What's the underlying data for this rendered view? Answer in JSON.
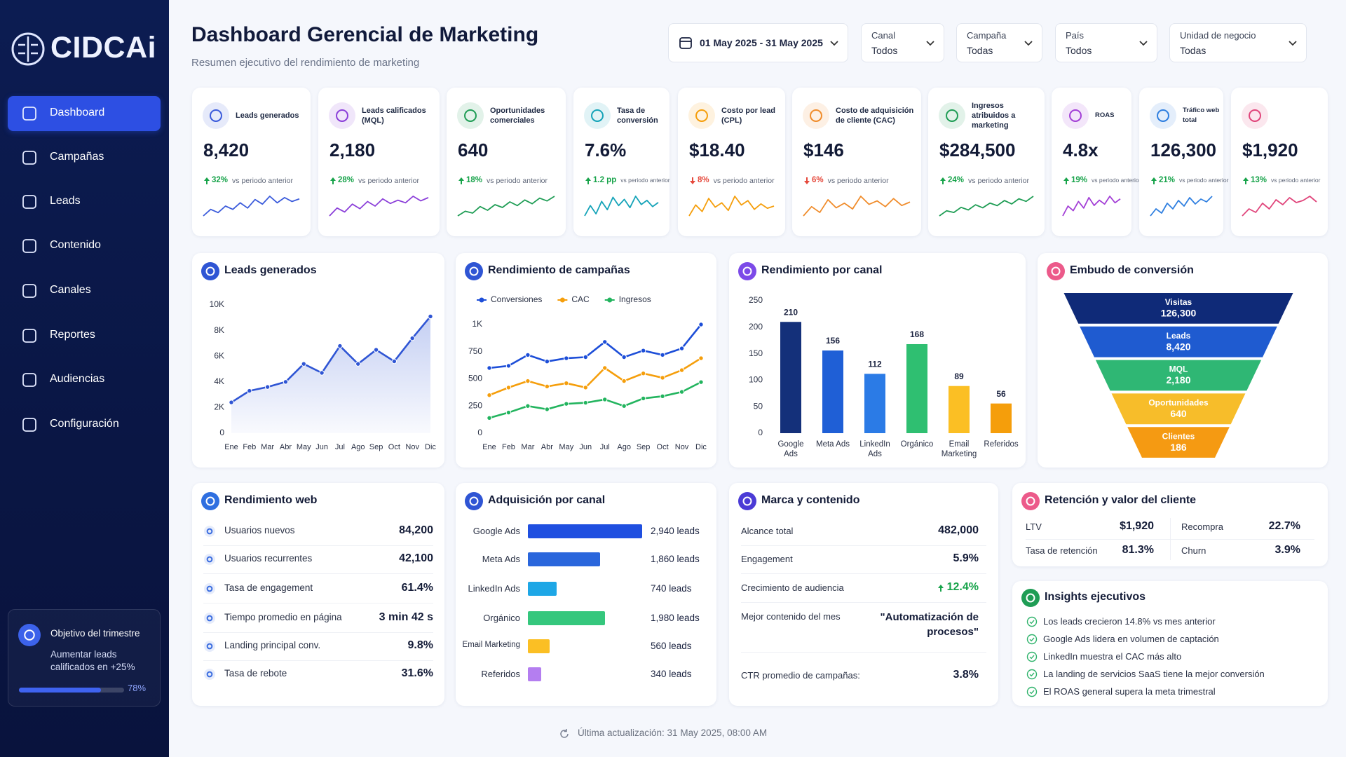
{
  "sidebar": {
    "brand": "CIDCAi",
    "menu": [
      "Dashboard",
      "Campañas",
      "Leads",
      "Contenido",
      "Canales",
      "Reportes",
      "Audiencias",
      "Configuración"
    ],
    "active": 0,
    "goal": {
      "title": "Objetivo del trimestre",
      "text": "Aumentar leads calificados en +25%",
      "progress": 78,
      "progress_label": "78%"
    }
  },
  "header": {
    "title": "Dashboard Gerencial de Marketing",
    "subtitle": "Resumen ejecutivo del rendimiento de marketing"
  },
  "filters": [
    {
      "value": "01 May 2025 - 31 May 2025"
    },
    {
      "label": "Canal",
      "value": "Todos"
    },
    {
      "label": "Campaña",
      "value": "Todas"
    },
    {
      "label": "País",
      "value": "Todos"
    },
    {
      "label": "Unidad de negocio",
      "value": "Todas"
    }
  ],
  "kpis": [
    {
      "label": "Leads generados",
      "value": "8,420",
      "change": "32%",
      "direction": "up",
      "note": "vs periodo anterior",
      "color": "#3b5bdb",
      "spark": [
        3,
        4,
        3.5,
        4.5,
        4,
        5,
        4.2,
        5.5,
        4.8,
        6,
        5,
        5.8,
        5.2,
        5.6
      ]
    },
    {
      "label": "Leads calificados (MQL)",
      "value": "2,180",
      "change": "28%",
      "direction": "up",
      "note": "vs periodo anterior",
      "color": "#8b3fd9",
      "spark": [
        3,
        4.2,
        3.6,
        4.8,
        4.1,
        5.2,
        4.5,
        5.6,
        4.9,
        5.4,
        5,
        6,
        5.3,
        5.8
      ]
    },
    {
      "label": "Oportunidades comerciales",
      "value": "640",
      "change": "18%",
      "direction": "up",
      "note": "vs periodo anterior",
      "color": "#1f9d55",
      "spark": [
        2,
        3,
        2.6,
        4,
        3.2,
        4.4,
        3.8,
        5,
        4.2,
        5.4,
        4.6,
        5.8,
        5.2,
        6.2
      ]
    },
    {
      "label": "Tasa de conversión",
      "value": "7.6%",
      "change": "1.2 pp",
      "direction": "up",
      "note": "vs periodo anterior",
      "color": "#14a3b8",
      "spark": [
        4,
        5,
        4.2,
        5.4,
        4.6,
        5.8,
        5,
        5.6,
        4.8,
        5.9,
        5.1,
        5.5,
        4.9,
        5.3
      ]
    },
    {
      "label": "Costo por lead (CPL)",
      "value": "$18.40",
      "change": "8%",
      "direction": "down",
      "note": "vs periodo anterior",
      "color": "#f59e0b",
      "spark": [
        4,
        5,
        4.4,
        5.6,
        4.8,
        5.2,
        4.5,
        5.8,
        5,
        5.4,
        4.6,
        5.1,
        4.7,
        4.9
      ]
    },
    {
      "label": "Costo de adquisición de cliente (CAC)",
      "value": "$146",
      "change": "6%",
      "direction": "down",
      "note": "vs periodo anterior",
      "color": "#f08c2b",
      "spark": [
        4,
        4.8,
        4.3,
        5.4,
        4.7,
        5.1,
        4.6,
        5.7,
        5,
        5.3,
        4.8,
        5.5,
        4.9,
        5.2
      ]
    },
    {
      "label": "Ingresos atribuidos a marketing",
      "value": "$284,500",
      "change": "24%",
      "direction": "up",
      "note": "vs periodo anterior",
      "color": "#1f9d55",
      "spark": [
        2,
        3.2,
        2.8,
        4,
        3.4,
        4.6,
        3.9,
        5,
        4.4,
        5.6,
        4.8,
        6,
        5.4,
        6.6
      ]
    },
    {
      "label": "ROAS",
      "value": "4.8x",
      "change": "19%",
      "direction": "up",
      "note": "vs periodo anterior",
      "color": "#a33fd6",
      "spark": [
        3,
        4.5,
        3.8,
        5.2,
        4.2,
        5.8,
        4.6,
        5.4,
        4.8,
        6,
        5,
        5.6
      ]
    },
    {
      "label": "Tráfico web total",
      "value": "126,300",
      "change": "21%",
      "direction": "up",
      "note": "vs periodo anterior",
      "color": "#2f7fe0",
      "spark": [
        3,
        4,
        3.4,
        4.8,
        4,
        5.2,
        4.4,
        5.6,
        4.7,
        5.4,
        5,
        5.8
      ]
    },
    {
      "value": "$1,920",
      "change": "13%",
      "direction": "up",
      "note": "vs periodo anterior",
      "color": "#e0457b",
      "spark": [
        3,
        4,
        3.5,
        4.8,
        4,
        5.3,
        4.6,
        5.6,
        4.9,
        5.2,
        5.8,
        5
      ]
    }
  ],
  "leads_chart": {
    "type": "line",
    "title": "Leads generados",
    "categories": [
      "Ene",
      "Feb",
      "Mar",
      "Abr",
      "May",
      "Jun",
      "Jul",
      "Ago",
      "Sep",
      "Oct",
      "Nov",
      "Dic"
    ],
    "values": [
      2400,
      3300,
      3600,
      4000,
      5400,
      4700,
      6800,
      5400,
      6500,
      5600,
      7400,
      9100
    ],
    "color": "#2f55d4",
    "ylim": [
      0,
      10000
    ],
    "yticks": [
      0,
      {
        "value": 2000,
        "label": "2K"
      },
      {
        "value": 4000,
        "label": "4K"
      },
      {
        "value": 6000,
        "label": "6K"
      },
      {
        "value": 8000,
        "label": "8K"
      },
      {
        "value": 10000,
        "label": "10K"
      }
    ],
    "grid": false
  },
  "campaign_chart": {
    "type": "line",
    "title": "Rendimiento de campañas",
    "categories": [
      "Ene",
      "Feb",
      "Mar",
      "Abr",
      "May",
      "Jun",
      "Jul",
      "Ago",
      "Sep",
      "Oct",
      "Nov",
      "Dic"
    ],
    "series": [
      {
        "name": "Conversiones",
        "color": "#1d4ed8",
        "values": [
          600,
          620,
          720,
          660,
          690,
          700,
          840,
          700,
          760,
          720,
          780,
          1000
        ]
      },
      {
        "name": "CAC",
        "color": "#f59e0b",
        "values": [
          350,
          420,
          480,
          430,
          460,
          420,
          600,
          480,
          550,
          510,
          580,
          690
        ]
      },
      {
        "name": "Ingresos",
        "color": "#22b45e",
        "values": [
          140,
          190,
          250,
          220,
          270,
          280,
          310,
          250,
          320,
          340,
          380,
          470
        ]
      }
    ],
    "ylim": [
      0,
      1000
    ],
    "yticks": [
      0,
      250,
      500,
      750,
      {
        "value": 1000,
        "label": "1K"
      }
    ],
    "grid": false
  },
  "channel_chart": {
    "type": "bar",
    "title": "Rendimiento por canal",
    "categories": [
      "Google Ads",
      "Meta Ads",
      "LinkedIn Ads",
      "Orgánico",
      "Email Marketing",
      "Referidos"
    ],
    "values": [
      210,
      156,
      112,
      168,
      89,
      56
    ],
    "colors": [
      "#14307a",
      "#1f5fd6",
      "#2b7be6",
      "#2fbf71",
      "#fbbf24",
      "#f59e0b"
    ],
    "ylim": [
      0,
      250
    ],
    "yticks": [
      0,
      50,
      100,
      150,
      200,
      250
    ],
    "grid": false
  },
  "funnel": {
    "type": "funnel",
    "title": "Embudo de conversión",
    "stages": [
      {
        "label": "Visitas",
        "value": "126,300",
        "color": "#0f2a78"
      },
      {
        "label": "Leads",
        "value": "8,420",
        "color": "#1f5bd0"
      },
      {
        "label": "MQL",
        "value": "2,180",
        "color": "#2fb774"
      },
      {
        "label": "Oportunidades",
        "value": "640",
        "color": "#f7bd2a"
      },
      {
        "label": "Clientes",
        "value": "186",
        "color": "#f59a12"
      }
    ]
  },
  "web": {
    "title": "Rendimiento web",
    "rows": [
      {
        "label": "Usuarios nuevos",
        "value": "84,200"
      },
      {
        "label": "Usuarios recurrentes",
        "value": "42,100"
      },
      {
        "label": "Tasa de engagement",
        "value": "61.4%"
      },
      {
        "label": "Tiempo promedio en página",
        "value": "3 min 42 s"
      },
      {
        "label": "Landing principal conv.",
        "value": "9.8%"
      },
      {
        "label": "Tasa de rebote",
        "value": "31.6%"
      }
    ]
  },
  "acquisition": {
    "type": "bar",
    "title": "Adquisición por canal",
    "categories": [
      "Google Ads",
      "Meta Ads",
      "LinkedIn Ads",
      "Orgánico",
      "Email Marketing",
      "Referidos"
    ],
    "values": [
      2940,
      1860,
      740,
      1980,
      560,
      340
    ],
    "value_labels": [
      "2,940 leads",
      "1,860 leads",
      "740 leads",
      "1,980 leads",
      "560 leads",
      "340 leads"
    ],
    "colors": [
      "#1f4fe0",
      "#2a66dc",
      "#1ea7e6",
      "#35c77d",
      "#fbbf24",
      "#b47ef0"
    ]
  },
  "brand": {
    "title": "Marca y contenido",
    "rows": [
      {
        "label": "Alcance total",
        "value": "482,000"
      },
      {
        "label": "Engagement",
        "value": "5.9%"
      },
      {
        "label": "Crecimiento de audiencia",
        "value": "12.4%",
        "direction": "up"
      },
      {
        "label": "Mejor contenido del mes",
        "value": "\"Automatización de procesos\""
      },
      {
        "label": "CTR promedio de campañas:",
        "value": "3.8%"
      }
    ]
  },
  "retention": {
    "title": "Retención y valor del cliente",
    "rows": [
      {
        "label": "LTV",
        "value": "$1,920"
      },
      {
        "label": "Recompra",
        "value": "22.7%"
      },
      {
        "label": "Tasa de retención",
        "value": "81.3%"
      },
      {
        "label": "Churn",
        "value": "3.9%"
      }
    ]
  },
  "insights": {
    "title": "Insights ejecutivos",
    "items": [
      "Los leads crecieron 14.8% vs mes anterior",
      "Google Ads lidera en volumen de captación",
      "LinkedIn muestra el CAC más alto",
      "La landing de servicios SaaS tiene la mejor conversión",
      "El ROAS general supera la meta trimestral"
    ]
  },
  "footer": "Última actualización: 31 May 2025, 08:00 AM"
}
